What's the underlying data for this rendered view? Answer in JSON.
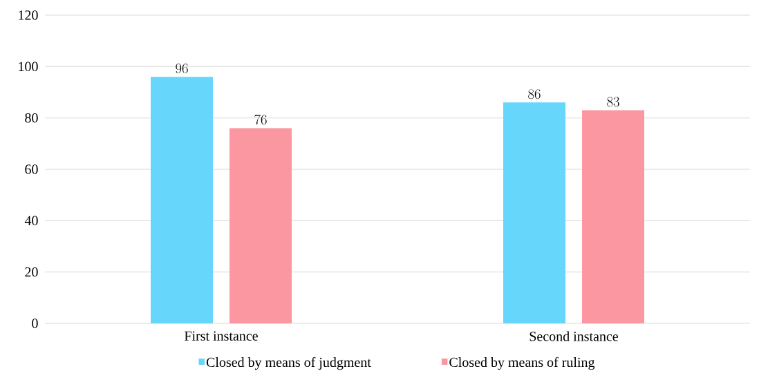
{
  "chart_data": {
    "type": "bar",
    "categories": [
      "First instance",
      "Second instance"
    ],
    "series": [
      {
        "name": "Closed by means of judgment",
        "color": "#66d6fb",
        "values": [
          96,
          86
        ]
      },
      {
        "name": "Closed by means of ruling",
        "color": "#fb97a0",
        "values": [
          76,
          83
        ]
      }
    ],
    "ylim": [
      0,
      120
    ],
    "yticks": [
      0,
      20,
      40,
      60,
      80,
      100,
      120
    ],
    "grid": "y",
    "legend": "bottom",
    "data_labels": true
  }
}
